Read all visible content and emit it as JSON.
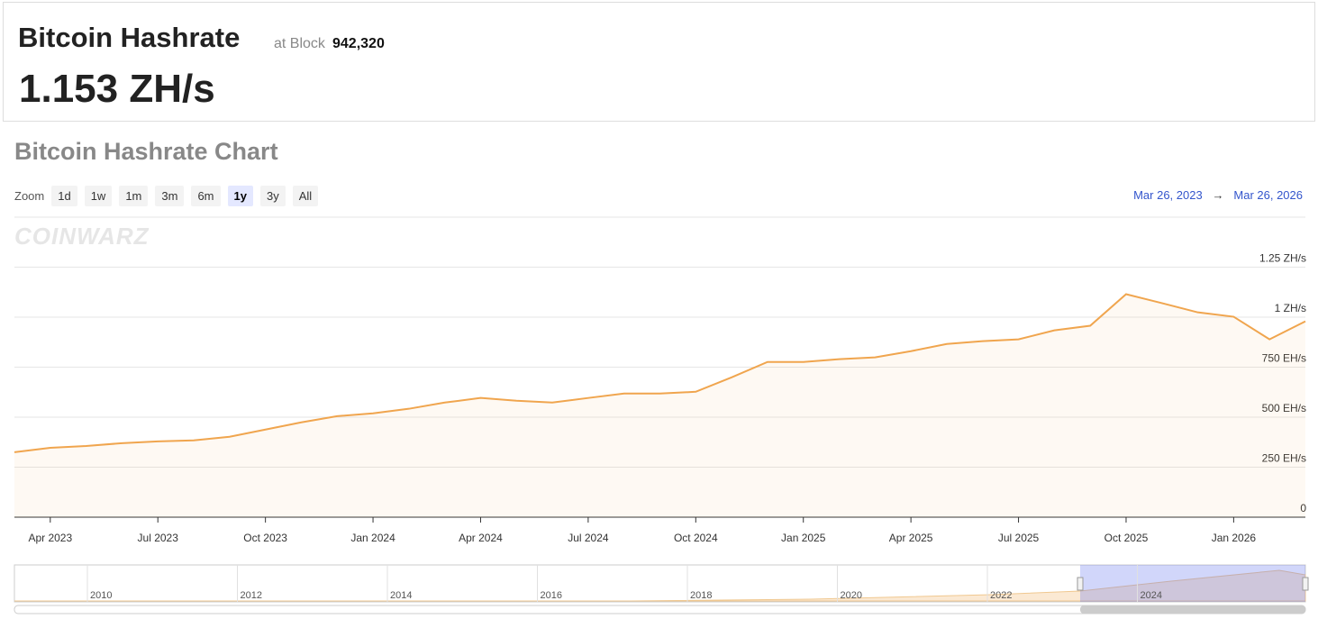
{
  "header": {
    "title": "Bitcoin Hashrate",
    "block_prefix": "at Block",
    "block": "942,320",
    "hashrate": "1.153 ZH/s"
  },
  "chart_panel": {
    "title": "Bitcoin Hashrate Chart",
    "zoom_label": "Zoom",
    "zoom_buttons": [
      "1d",
      "1w",
      "1m",
      "3m",
      "6m",
      "1y",
      "3y",
      "All"
    ],
    "range_from": "Mar 26, 2023",
    "range_arrow": "→",
    "range_to": "Mar 26, 2026",
    "watermark": "COINWARZ"
  },
  "chart_data": {
    "type": "line",
    "color": "#f0a54e",
    "x": [
      "2023-03",
      "2023-04",
      "2023-05",
      "2023-06",
      "2023-07",
      "2023-08",
      "2023-09",
      "2023-10",
      "2023-11",
      "2023-12",
      "2024-01",
      "2024-02",
      "2024-03",
      "2024-04",
      "2024-05",
      "2024-06",
      "2024-07",
      "2024-08",
      "2024-09",
      "2024-10",
      "2024-11",
      "2024-12",
      "2025-01",
      "2025-02",
      "2025-03",
      "2025-04",
      "2025-05",
      "2025-06",
      "2025-07",
      "2025-08",
      "2025-09",
      "2025-10",
      "2025-11",
      "2025-12",
      "2026-01",
      "2026-02",
      "2026-03"
    ],
    "values": [
      325,
      347,
      356,
      370,
      379,
      384,
      402,
      438,
      474,
      505,
      519,
      542,
      573,
      596,
      582,
      573,
      596,
      618,
      618,
      627,
      699,
      776,
      776,
      790,
      799,
      830,
      866,
      880,
      889,
      934,
      957,
      1115,
      1070,
      1024,
      1002,
      889,
      979
    ],
    "xlim": [
      "2023-03",
      "2026-03"
    ],
    "xticks": [
      {
        "value": "2023-04",
        "label": "Apr 2023"
      },
      {
        "value": "2023-07",
        "label": "Jul 2023"
      },
      {
        "value": "2023-10",
        "label": "Oct 2023"
      },
      {
        "value": "2024-01",
        "label": "Jan 2024"
      },
      {
        "value": "2024-04",
        "label": "Apr 2024"
      },
      {
        "value": "2024-07",
        "label": "Jul 2024"
      },
      {
        "value": "2024-10",
        "label": "Oct 2024"
      },
      {
        "value": "2025-01",
        "label": "Jan 2025"
      },
      {
        "value": "2025-04",
        "label": "Apr 2025"
      },
      {
        "value": "2025-07",
        "label": "Jul 2025"
      },
      {
        "value": "2025-10",
        "label": "Oct 2025"
      },
      {
        "value": "2026-01",
        "label": "Jan 2026"
      }
    ],
    "ylim": [
      0,
      1500
    ],
    "yticks": [
      0,
      {
        "value": 250,
        "label": "250 EH/s"
      },
      {
        "value": 500,
        "label": "500 EH/s"
      },
      {
        "value": 750,
        "label": "750 EH/s"
      },
      {
        "value": 1000,
        "label": "1 ZH/s"
      },
      {
        "value": 1250,
        "label": "1.25 ZH/s"
      }
    ],
    "grid": true
  },
  "navigator": {
    "labels": [
      "2010",
      "2012",
      "2014",
      "2016",
      "2018",
      "2020",
      "2022",
      "2024"
    ]
  }
}
